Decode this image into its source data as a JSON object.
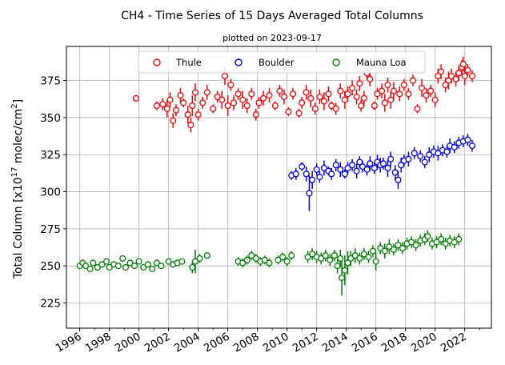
{
  "chart_data": {
    "type": "scatter",
    "title": "CH4 - Time Series of 15 Days Averaged Total Columns",
    "subtitle": "plotted on 2023-09-17",
    "ylabel_main": "Total Column [x10",
    "ylabel_exp1": "17",
    "ylabel_mid": " molec/cm",
    "ylabel_exp2": "2",
    "ylabel_end": "]",
    "xlabel": "",
    "xlim": [
      1995.1,
      2023.8
    ],
    "ylim": [
      208,
      398
    ],
    "x_ticks": [
      1996,
      1998,
      2000,
      2002,
      2004,
      2006,
      2008,
      2010,
      2012,
      2014,
      2016,
      2018,
      2020,
      2022
    ],
    "x_tick_labels": [
      "1996",
      "1998",
      "2000",
      "2002",
      "2004",
      "2006",
      "2008",
      "2010",
      "2012",
      "2014",
      "2016",
      "2018",
      "2020",
      "2022"
    ],
    "y_ticks": [
      225,
      250,
      275,
      300,
      325,
      350,
      375
    ],
    "y_tick_labels": [
      "225",
      "250",
      "275",
      "300",
      "325",
      "350",
      "375"
    ],
    "grid": true,
    "legend_position": "top",
    "series": [
      {
        "name": "Thule",
        "color": "#ff0000",
        "points": [
          [
            1999.8,
            363,
            1
          ],
          [
            2001.2,
            358,
            3
          ],
          [
            2001.6,
            359,
            4
          ],
          [
            2001.9,
            356,
            6
          ],
          [
            2002.1,
            362,
            5
          ],
          [
            2002.3,
            348,
            5
          ],
          [
            2002.5,
            355,
            4
          ],
          [
            2002.8,
            365,
            5
          ],
          [
            2003.0,
            360,
            3
          ],
          [
            2003.3,
            352,
            6
          ],
          [
            2003.5,
            345,
            5
          ],
          [
            2003.6,
            358,
            7
          ],
          [
            2003.8,
            367,
            6
          ],
          [
            2004.0,
            352,
            4
          ],
          [
            2004.3,
            360,
            4
          ],
          [
            2004.6,
            367,
            5
          ],
          [
            2005.0,
            356,
            3
          ],
          [
            2005.3,
            364,
            4
          ],
          [
            2005.6,
            362,
            6
          ],
          [
            2005.8,
            378,
            6
          ],
          [
            2006.0,
            358,
            7
          ],
          [
            2006.2,
            372,
            4
          ],
          [
            2006.4,
            360,
            5
          ],
          [
            2006.7,
            366,
            4
          ],
          [
            2007.0,
            362,
            6
          ],
          [
            2007.3,
            358,
            5
          ],
          [
            2007.6,
            366,
            4
          ],
          [
            2007.9,
            352,
            4
          ],
          [
            2008.1,
            360,
            4
          ],
          [
            2008.4,
            363,
            5
          ],
          [
            2008.8,
            365,
            5
          ],
          [
            2009.2,
            358,
            3
          ],
          [
            2009.5,
            368,
            4
          ],
          [
            2009.8,
            364,
            5
          ],
          [
            2010.1,
            354,
            3
          ],
          [
            2010.4,
            366,
            4
          ],
          [
            2010.8,
            353,
            3
          ],
          [
            2011.0,
            360,
            4
          ],
          [
            2011.3,
            367,
            5
          ],
          [
            2011.6,
            363,
            6
          ],
          [
            2011.9,
            356,
            4
          ],
          [
            2012.2,
            364,
            5
          ],
          [
            2012.5,
            361,
            6
          ],
          [
            2012.8,
            366,
            5
          ],
          [
            2013.0,
            358,
            3
          ],
          [
            2013.3,
            356,
            4
          ],
          [
            2013.6,
            368,
            5
          ],
          [
            2013.9,
            362,
            6
          ],
          [
            2014.1,
            366,
            5
          ],
          [
            2014.4,
            370,
            5
          ],
          [
            2014.7,
            364,
            5
          ],
          [
            2014.9,
            373,
            5
          ],
          [
            2015.0,
            358,
            4
          ],
          [
            2015.2,
            363,
            5
          ],
          [
            2015.4,
            380,
            4
          ],
          [
            2015.6,
            376,
            5
          ],
          [
            2015.9,
            358,
            3
          ],
          [
            2016.1,
            366,
            4
          ],
          [
            2016.4,
            368,
            5
          ],
          [
            2016.6,
            360,
            6
          ],
          [
            2016.8,
            372,
            5
          ],
          [
            2017.0,
            362,
            6
          ],
          [
            2017.2,
            368,
            6
          ],
          [
            2017.6,
            366,
            5
          ],
          [
            2017.9,
            372,
            4
          ],
          [
            2018.2,
            366,
            4
          ],
          [
            2018.5,
            375,
            4
          ],
          [
            2018.8,
            356,
            3
          ],
          [
            2019.1,
            370,
            6
          ],
          [
            2019.4,
            365,
            5
          ],
          [
            2019.7,
            368,
            4
          ],
          [
            2020.0,
            362,
            5
          ],
          [
            2020.2,
            378,
            5
          ],
          [
            2020.4,
            381,
            5
          ],
          [
            2020.7,
            372,
            5
          ],
          [
            2020.9,
            375,
            6
          ],
          [
            2021.1,
            378,
            5
          ],
          [
            2021.4,
            376,
            5
          ],
          [
            2021.6,
            380,
            5
          ],
          [
            2021.8,
            384,
            5
          ],
          [
            2021.9,
            386,
            5
          ],
          [
            2022.0,
            378,
            6
          ],
          [
            2022.2,
            382,
            4
          ],
          [
            2022.5,
            378,
            4
          ]
        ]
      },
      {
        "name": "Boulder",
        "color": "#0000ff",
        "points": [
          [
            2010.3,
            311,
            3
          ],
          [
            2010.6,
            312,
            4
          ],
          [
            2011.0,
            317,
            3
          ],
          [
            2011.3,
            312,
            5
          ],
          [
            2011.5,
            299,
            12
          ],
          [
            2011.7,
            308,
            6
          ],
          [
            2012.0,
            315,
            4
          ],
          [
            2012.2,
            310,
            4
          ],
          [
            2012.5,
            316,
            5
          ],
          [
            2012.8,
            314,
            3
          ],
          [
            2013.0,
            312,
            4
          ],
          [
            2013.3,
            318,
            4
          ],
          [
            2013.6,
            315,
            5
          ],
          [
            2013.9,
            312,
            3
          ],
          [
            2014.1,
            316,
            4
          ],
          [
            2014.4,
            318,
            4
          ],
          [
            2014.7,
            314,
            5
          ],
          [
            2014.9,
            320,
            4
          ],
          [
            2015.1,
            317,
            4
          ],
          [
            2015.4,
            315,
            4
          ],
          [
            2015.6,
            319,
            5
          ],
          [
            2015.9,
            316,
            4
          ],
          [
            2016.1,
            320,
            5
          ],
          [
            2016.3,
            318,
            5
          ],
          [
            2016.5,
            319,
            4
          ],
          [
            2016.8,
            316,
            6
          ],
          [
            2017.0,
            322,
            5
          ],
          [
            2017.3,
            313,
            5
          ],
          [
            2017.5,
            308,
            6
          ],
          [
            2017.7,
            318,
            5
          ],
          [
            2017.9,
            321,
            4
          ],
          [
            2018.2,
            322,
            5
          ],
          [
            2018.6,
            326,
            4
          ],
          [
            2019.0,
            324,
            4
          ],
          [
            2019.3,
            320,
            4
          ],
          [
            2019.6,
            325,
            5
          ],
          [
            2019.9,
            327,
            4
          ],
          [
            2020.2,
            326,
            5
          ],
          [
            2020.5,
            328,
            4
          ],
          [
            2020.8,
            327,
            4
          ],
          [
            2021.0,
            331,
            5
          ],
          [
            2021.3,
            330,
            4
          ],
          [
            2021.6,
            333,
            4
          ],
          [
            2021.9,
            334,
            4
          ],
          [
            2022.2,
            335,
            4
          ],
          [
            2022.5,
            331,
            4
          ]
        ]
      },
      {
        "name": "Mauna Loa",
        "color": "#008000",
        "points": [
          [
            1996.0,
            250,
            1
          ],
          [
            1996.2,
            252,
            1
          ],
          [
            1996.4,
            250,
            2
          ],
          [
            1996.7,
            248,
            2
          ],
          [
            1996.9,
            252,
            2
          ],
          [
            1997.2,
            249,
            2
          ],
          [
            1997.5,
            251,
            2
          ],
          [
            1997.8,
            253,
            2
          ],
          [
            1998.0,
            249,
            2
          ],
          [
            1998.3,
            251,
            2
          ],
          [
            1998.6,
            250,
            2
          ],
          [
            1998.9,
            255,
            2
          ],
          [
            1999.1,
            249,
            2
          ],
          [
            1999.4,
            252,
            2
          ],
          [
            1999.7,
            250,
            2
          ],
          [
            2000.0,
            253,
            2
          ],
          [
            2000.3,
            249,
            2
          ],
          [
            2000.6,
            251,
            2
          ],
          [
            2000.9,
            248,
            2
          ],
          [
            2001.2,
            252,
            2
          ],
          [
            2001.5,
            250,
            2
          ],
          [
            2002.0,
            253,
            2
          ],
          [
            2002.3,
            251,
            2
          ],
          [
            2002.6,
            252,
            2
          ],
          [
            2002.9,
            253,
            2
          ],
          [
            2003.6,
            249,
            4
          ],
          [
            2003.8,
            253,
            8
          ],
          [
            2004.1,
            255,
            3
          ],
          [
            2004.6,
            257,
            2
          ],
          [
            2006.7,
            253,
            3
          ],
          [
            2007.0,
            252,
            3
          ],
          [
            2007.3,
            254,
            3
          ],
          [
            2007.6,
            257,
            3
          ],
          [
            2007.9,
            255,
            3
          ],
          [
            2008.2,
            253,
            3
          ],
          [
            2008.5,
            254,
            3
          ],
          [
            2008.8,
            252,
            3
          ],
          [
            2009.4,
            254,
            3
          ],
          [
            2009.7,
            256,
            3
          ],
          [
            2010.0,
            253,
            3
          ],
          [
            2010.3,
            257,
            3
          ],
          [
            2011.4,
            256,
            4
          ],
          [
            2011.7,
            258,
            4
          ],
          [
            2012.0,
            256,
            4
          ],
          [
            2012.3,
            255,
            4
          ],
          [
            2012.6,
            257,
            4
          ],
          [
            2012.9,
            254,
            4
          ],
          [
            2013.2,
            257,
            4
          ],
          [
            2013.4,
            250,
            5
          ],
          [
            2013.6,
            255,
            6
          ],
          [
            2013.7,
            242,
            12
          ],
          [
            2013.9,
            247,
            10
          ],
          [
            2014.1,
            252,
            8
          ],
          [
            2014.3,
            255,
            5
          ],
          [
            2014.6,
            257,
            5
          ],
          [
            2014.9,
            255,
            4
          ],
          [
            2015.2,
            258,
            4
          ],
          [
            2015.5,
            256,
            4
          ],
          [
            2015.8,
            260,
            4
          ],
          [
            2016.0,
            253,
            6
          ],
          [
            2016.3,
            262,
            4
          ],
          [
            2016.6,
            260,
            5
          ],
          [
            2016.9,
            263,
            5
          ],
          [
            2017.2,
            261,
            4
          ],
          [
            2017.5,
            264,
            4
          ],
          [
            2017.8,
            262,
            4
          ],
          [
            2018.1,
            265,
            4
          ],
          [
            2018.4,
            266,
            4
          ],
          [
            2018.7,
            264,
            4
          ],
          [
            2019.0,
            267,
            4
          ],
          [
            2019.3,
            268,
            4
          ],
          [
            2019.5,
            270,
            4
          ],
          [
            2019.8,
            265,
            4
          ],
          [
            2020.1,
            266,
            4
          ],
          [
            2020.4,
            268,
            4
          ],
          [
            2020.7,
            265,
            4
          ],
          [
            2021.0,
            267,
            4
          ],
          [
            2021.3,
            266,
            4
          ],
          [
            2021.6,
            268,
            4
          ]
        ]
      }
    ]
  }
}
